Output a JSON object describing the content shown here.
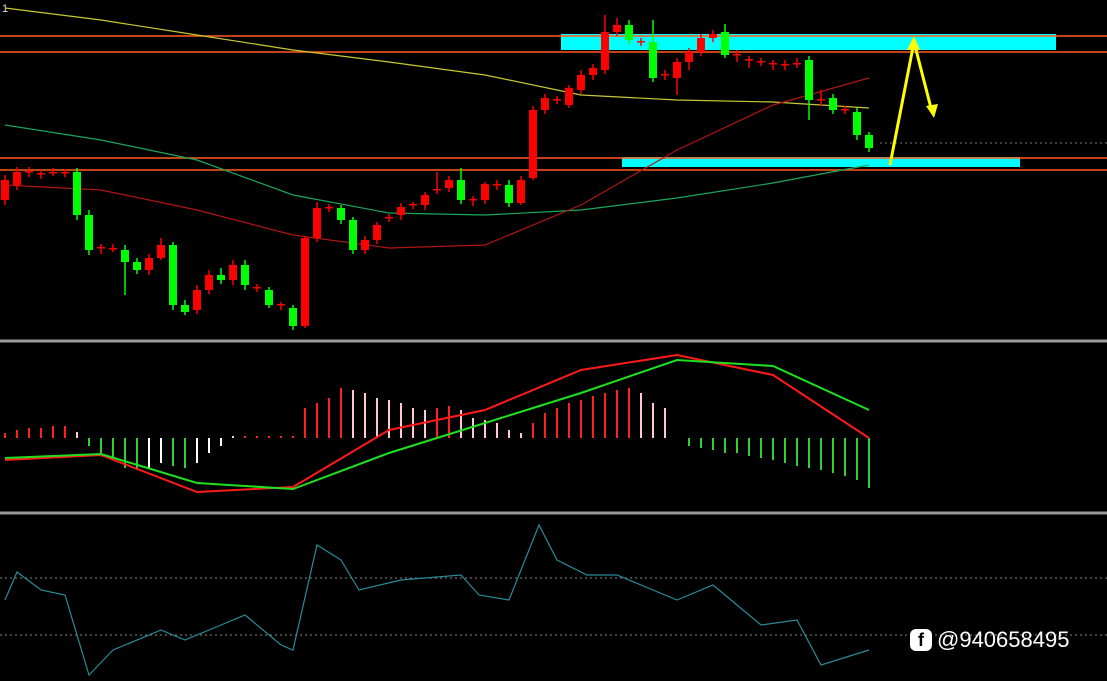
{
  "label": "1",
  "watermark": "@940658495",
  "chart_data": [
    {
      "type": "candlestick",
      "ylim": [
        0,
        340
      ],
      "candles": [
        [
          140,
          165,
          135,
          160
        ],
        [
          155,
          173,
          150,
          168
        ],
        [
          168,
          173,
          163,
          169
        ],
        [
          166,
          170,
          161,
          167
        ],
        [
          168,
          172,
          164,
          168
        ],
        [
          167,
          171,
          163,
          168
        ],
        [
          168,
          172,
          120,
          125
        ],
        [
          125,
          130,
          85,
          90
        ],
        [
          92,
          96,
          86,
          93
        ],
        [
          92,
          96,
          88,
          92
        ],
        [
          90,
          95,
          45,
          78
        ],
        [
          78,
          82,
          66,
          70
        ],
        [
          70,
          86,
          65,
          82
        ],
        [
          82,
          102,
          80,
          95
        ],
        [
          95,
          98,
          30,
          35
        ],
        [
          35,
          40,
          25,
          28
        ],
        [
          30,
          55,
          26,
          50
        ],
        [
          50,
          70,
          46,
          65
        ],
        [
          65,
          72,
          56,
          60
        ],
        [
          60,
          80,
          55,
          75
        ],
        [
          75,
          80,
          50,
          55
        ],
        [
          52,
          56,
          48,
          53
        ],
        [
          50,
          53,
          32,
          35
        ],
        [
          35,
          38,
          30,
          36
        ],
        [
          32,
          35,
          10,
          14
        ],
        [
          14,
          104,
          12,
          102
        ],
        [
          102,
          138,
          98,
          132
        ],
        [
          132,
          136,
          128,
          133
        ],
        [
          132,
          135,
          116,
          120
        ],
        [
          120,
          123,
          86,
          90
        ],
        [
          90,
          104,
          86,
          100
        ],
        [
          100,
          118,
          96,
          115
        ],
        [
          122,
          126,
          118,
          123
        ],
        [
          125,
          137,
          120,
          133
        ],
        [
          135,
          138,
          131,
          136
        ],
        [
          135,
          148,
          130,
          145
        ],
        [
          150,
          168,
          146,
          151
        ],
        [
          152,
          164,
          148,
          160
        ],
        [
          160,
          172,
          136,
          140
        ],
        [
          140,
          144,
          134,
          141
        ],
        [
          140,
          158,
          136,
          156
        ],
        [
          155,
          160,
          150,
          156
        ],
        [
          155,
          160,
          133,
          137
        ],
        [
          137,
          164,
          135,
          160
        ],
        [
          162,
          234,
          160,
          230
        ],
        [
          230,
          246,
          226,
          242
        ],
        [
          240,
          244,
          236,
          241
        ],
        [
          235,
          255,
          232,
          252
        ],
        [
          250,
          270,
          246,
          265
        ],
        [
          265,
          276,
          260,
          272
        ],
        [
          270,
          325,
          266,
          308
        ],
        [
          308,
          322,
          304,
          315
        ],
        [
          315,
          320,
          296,
          300
        ],
        [
          298,
          302,
          294,
          299
        ],
        [
          298,
          320,
          258,
          262
        ],
        [
          265,
          270,
          260,
          266
        ],
        [
          262,
          282,
          245,
          278
        ],
        [
          278,
          292,
          270,
          288
        ],
        [
          288,
          306,
          284,
          302
        ],
        [
          302,
          310,
          298,
          306
        ],
        [
          308,
          316,
          282,
          285
        ],
        [
          285,
          290,
          278,
          286
        ],
        [
          280,
          284,
          272,
          281
        ],
        [
          278,
          282,
          274,
          279
        ],
        [
          276,
          280,
          270,
          277
        ],
        [
          275,
          280,
          270,
          276
        ],
        [
          276,
          282,
          272,
          277
        ],
        [
          280,
          284,
          220,
          240
        ],
        [
          240,
          250,
          234,
          241
        ],
        [
          242,
          246,
          226,
          230
        ],
        [
          230,
          234,
          226,
          231
        ],
        [
          228,
          232,
          200,
          205
        ],
        [
          205,
          208,
          188,
          192
        ]
      ],
      "up_color": "#ff0000",
      "down_color": "#00ff00",
      "levels": [
        304,
        288,
        182,
        170
      ],
      "level_color": "#ff5a1e",
      "zones": [
        [
          290,
          306
        ],
        [
          173,
          183
        ]
      ],
      "zone_color": "#00ffff",
      "ma": {
        "x": [
          0,
          8,
          16,
          24,
          32,
          40,
          48,
          56,
          64,
          72
        ],
        "series": [
          {
            "color": "#c8c832",
            "values": [
              332,
              320,
              305,
              290,
              278,
              265,
              245,
              240,
              238,
              232
            ]
          },
          {
            "color": "#1aa85a",
            "values": [
              215,
              200,
              180,
              145,
              127,
              125,
              130,
              142,
              157,
              175
            ]
          },
          {
            "color": "#b01515",
            "values": [
              155,
              150,
              130,
              105,
              92,
              95,
              135,
              190,
              235,
              262
            ]
          }
        ]
      }
    },
    {
      "type": "macd",
      "ylim": [
        -74,
        96
      ],
      "histogram": [
        5,
        8,
        10,
        10,
        12,
        12,
        6,
        -8,
        -15,
        -20,
        -30,
        -32,
        -30,
        -25,
        -28,
        -30,
        -25,
        -15,
        -8,
        2,
        2,
        2,
        2,
        2,
        2,
        30,
        35,
        40,
        50,
        48,
        45,
        40,
        38,
        35,
        30,
        28,
        30,
        32,
        28,
        20,
        18,
        15,
        8,
        5,
        15,
        25,
        30,
        35,
        38,
        42,
        45,
        48,
        50,
        45,
        35,
        30,
        0,
        -8,
        -10,
        -12,
        -15,
        -15,
        -18,
        -20,
        -22,
        -25,
        -28,
        -30,
        -32,
        -35,
        -38,
        -42,
        -50
      ],
      "x": [
        0,
        8,
        16,
        24,
        32,
        40,
        48,
        56,
        64,
        72
      ],
      "series": [
        {
          "color": "#ff1a1a",
          "values": [
            -22,
            -17,
            -54,
            -49,
            8,
            28,
            68,
            83,
            63,
            0
          ]
        },
        {
          "color": "#1ee01e",
          "values": [
            -20,
            -16,
            -45,
            -51,
            -15,
            15,
            45,
            78,
            72,
            28
          ]
        }
      ]
    },
    {
      "type": "line",
      "ylim": [
        0,
        167
      ],
      "color": "#2a8a9a",
      "reference": [
        103,
        46
      ],
      "x": [
        0,
        1,
        3,
        5,
        7,
        9,
        13,
        15,
        18,
        20,
        23,
        24,
        26,
        28,
        29.5,
        33,
        38,
        39.5,
        42,
        44.5,
        46,
        48.5,
        51,
        56,
        59,
        63,
        66,
        68,
        72
      ],
      "values": [
        81,
        109,
        91,
        86,
        6,
        31,
        51,
        41,
        56,
        66,
        36,
        31,
        136,
        121,
        91,
        101,
        106,
        86,
        81,
        156,
        121,
        106,
        106,
        81,
        96,
        56,
        61,
        16,
        31
      ]
    }
  ]
}
